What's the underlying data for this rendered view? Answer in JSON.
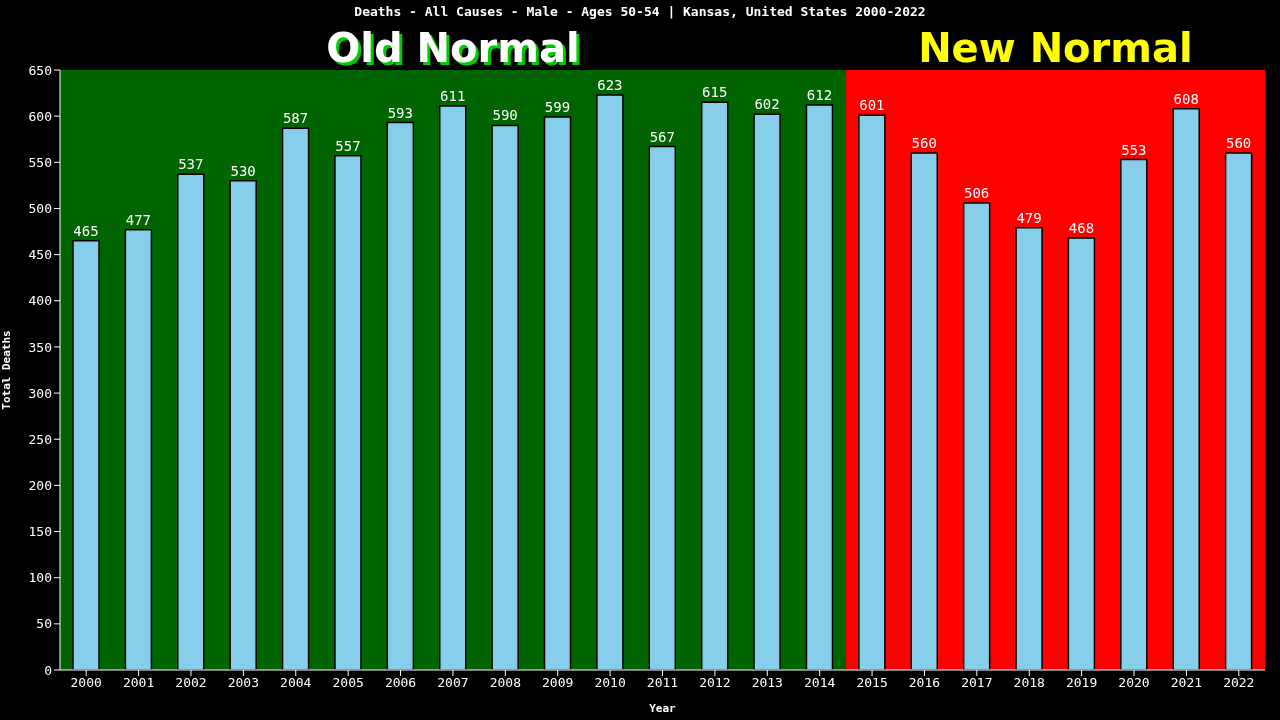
{
  "chart_data": {
    "type": "bar",
    "title": "Deaths - All Causes - Male - Ages 50-54 | Kansas, United States 2000-2022",
    "xlabel": "Year",
    "ylabel": "Total Deaths",
    "categories": [
      "2000",
      "2001",
      "2002",
      "2003",
      "2004",
      "2005",
      "2006",
      "2007",
      "2008",
      "2009",
      "2010",
      "2011",
      "2012",
      "2013",
      "2014",
      "2015",
      "2016",
      "2017",
      "2018",
      "2019",
      "2020",
      "2021",
      "2022"
    ],
    "values": [
      465,
      477,
      537,
      530,
      587,
      557,
      593,
      611,
      590,
      599,
      623,
      567,
      615,
      602,
      612,
      601,
      560,
      506,
      479,
      468,
      553,
      608,
      560
    ],
    "color": "#87ceeb",
    "ylim": [
      0,
      650
    ],
    "yticks": [
      0,
      50,
      100,
      150,
      200,
      250,
      300,
      350,
      400,
      450,
      500,
      550,
      600,
      650
    ],
    "grid": false,
    "data_labels": true,
    "bands": [
      {
        "axis": "x",
        "from": "2000",
        "to": "2014",
        "label": "Old Normal",
        "color": "#006400"
      },
      {
        "axis": "x",
        "from": "2015",
        "to": "2022",
        "label": "New Normal",
        "color": "#ff0000"
      }
    ]
  }
}
